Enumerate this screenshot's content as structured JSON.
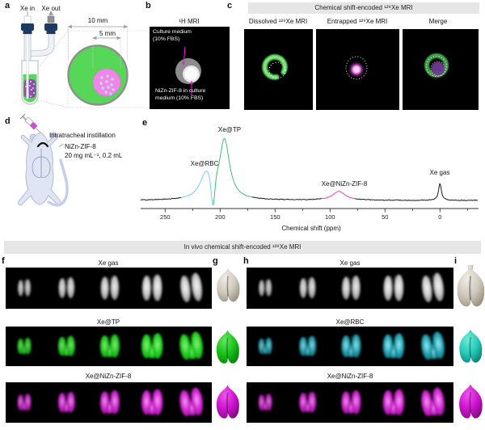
{
  "panels": {
    "a": {
      "letter": "a",
      "labels": {
        "xe_in": "Xe in",
        "xe_out": "Xe out",
        "outer_diameter": "10 mm",
        "inner_diameter": "5 mm"
      }
    },
    "b": {
      "letter": "b",
      "title": "¹H MRI",
      "annotation_top": "Culture medium\n(10% FBS)",
      "annotation_bottom": "NiZn-ZIF-8 in culture\nmedium (10% FBS)"
    },
    "c": {
      "letter": "c",
      "header": "Chemical shift-encoded ¹²⁹Xe MRI",
      "subpanels": [
        {
          "title": "Dissolved ¹²⁹Xe MRI"
        },
        {
          "title": "Entrapped ¹²⁹Xe MRI"
        },
        {
          "title": "Merge"
        }
      ]
    },
    "d": {
      "letter": "d",
      "procedure": "Intratracheal instillation",
      "agent": "NiZn-ZIF-8",
      "dose": "20 mg mL⁻¹, 0.2 mL"
    },
    "e": {
      "letter": "e"
    },
    "f": {
      "letter": "f"
    },
    "g": {
      "letter": "g"
    },
    "h": {
      "letter": "h"
    },
    "i": {
      "letter": "i"
    }
  },
  "chart_data": {
    "type": "line",
    "xlabel": "Chemical shift (ppm)",
    "x_ticks": [
      250,
      200,
      150,
      100,
      50,
      0
    ],
    "x_minor_ticks": [
      275,
      225,
      175,
      125,
      75,
      25,
      -25
    ],
    "x_range": [
      272,
      -34
    ],
    "x_axis_reversed": true,
    "grid": false,
    "line_color": "#1a1a1a",
    "peaks": [
      {
        "label": "Xe@RBC",
        "ppm": 213,
        "rel_intensity": 0.4,
        "width_ppm": 6.5,
        "color": "#74cdf2"
      },
      {
        "label": "Xe@TP",
        "ppm": 196,
        "rel_intensity": 1.0,
        "width_ppm": 5.5,
        "color": "#3bc471"
      },
      {
        "label": "Xe@NiZn-ZIF-8",
        "ppm": 92,
        "rel_intensity": 0.15,
        "width_ppm": 7.0,
        "color": "#ef3ec8"
      },
      {
        "label": "Xe gas",
        "ppm": 0,
        "rel_intensity": 0.29,
        "width_ppm": 1.5,
        "color": "#1a1a1a"
      }
    ],
    "dip": {
      "ppm": 206.5,
      "rel_depth": 0.49,
      "sigma_ppm": 1.6
    },
    "colored_segments": [
      {
        "color": "#74cdf2",
        "from_ppm": 236,
        "to_ppm": 206.45
      },
      {
        "color": "#3bc471",
        "from_ppm": 206.45,
        "to_ppm": 171
      },
      {
        "color": "#ef3ec8",
        "from_ppm": 108,
        "to_ppm": 78
      }
    ]
  },
  "invivo": {
    "header": "In vivo chemical shift-encoded ¹²⁹Xe MRI",
    "left": {
      "panel": "f",
      "render_panel": "g",
      "rows": [
        {
          "title": "Xe gas",
          "theme": "gray"
        },
        {
          "title": "Xe@TP",
          "theme": "green"
        },
        {
          "title": "Xe@NiZn-ZIF-8",
          "theme": "magenta"
        }
      ]
    },
    "right": {
      "panel": "h",
      "render_panel": "i",
      "rows": [
        {
          "title": "Xe gas",
          "theme": "gray"
        },
        {
          "title": "Xe@RBC",
          "theme": "cyan"
        },
        {
          "title": "Xe@NiZn-ZIF-8",
          "theme": "magenta"
        }
      ]
    },
    "themes": {
      "gray": {
        "core": "#f6f6f6",
        "mid": "#c9c9c9",
        "edge": "#6f6f6f",
        "merged": false
      },
      "green": {
        "core": "#90f07e",
        "mid": "#27d427",
        "edge": "#0b8f0b",
        "merged": true
      },
      "magenta": {
        "core": "#f5a0f5",
        "mid": "#d52ad5",
        "edge": "#8c0d8c",
        "merged": true
      },
      "cyan": {
        "core": "#9fecf2",
        "mid": "#27a9b8",
        "edge": "#0b5763",
        "merged": true
      }
    },
    "render_colors": {
      "white": [
        "#f0ede6",
        "#cfc9bd",
        "#97907f"
      ],
      "green": [
        "#62e862",
        "#18c018",
        "#0a7e0a"
      ],
      "magenta": [
        "#ee55ee",
        "#cc12cc",
        "#7d0c7d"
      ],
      "cyan": [
        "#74ead9",
        "#23cabb",
        "#0d8072"
      ]
    }
  },
  "colors": {
    "banner_bg": "#e6e6e6",
    "accent_magenta": "#e81ed0",
    "sample_green": "#57d757",
    "sample_pink": "#ef86e8",
    "suspension_purple": "#8d4fa8",
    "cap_navy": "#1d3a63",
    "mouse_body": "#dfe5f3"
  }
}
